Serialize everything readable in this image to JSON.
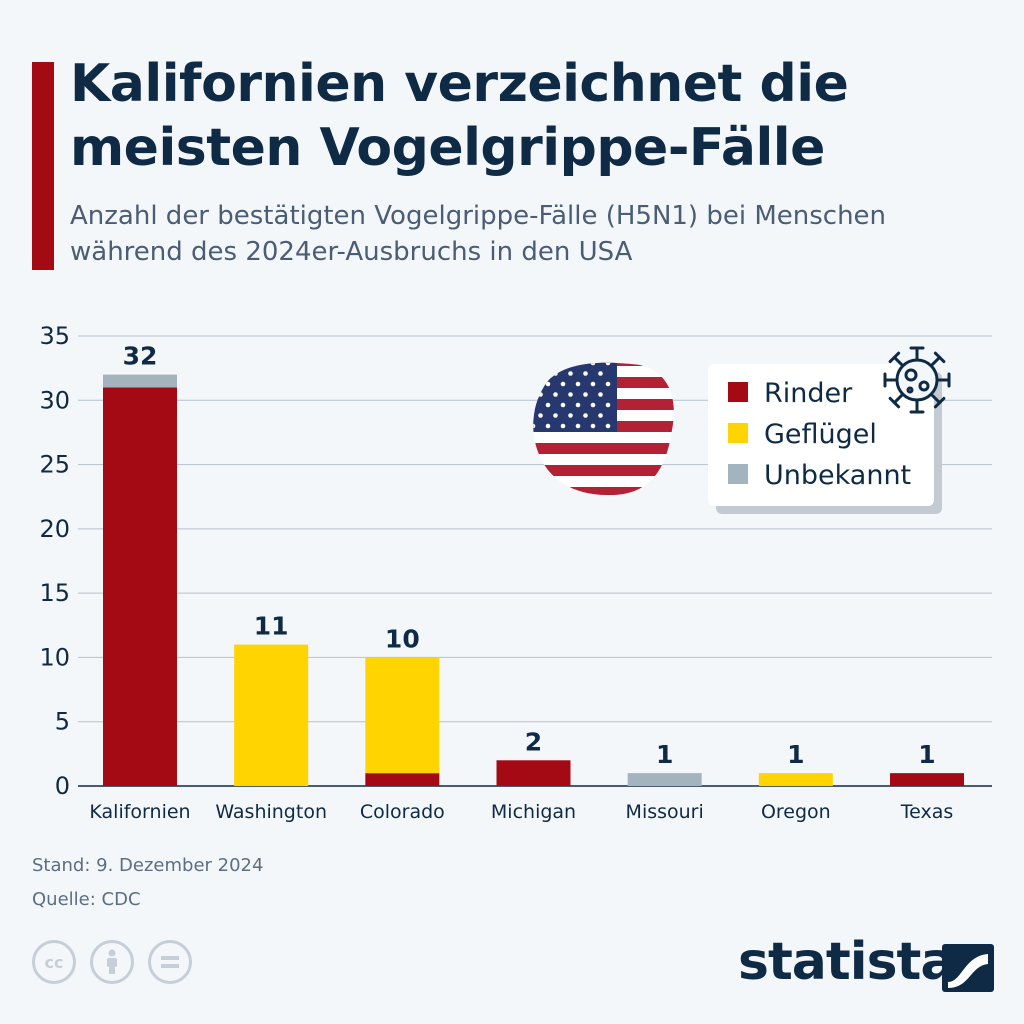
{
  "header": {
    "title": "Kalifornien verzeichnet die meisten Vogelgrippe-Fälle",
    "subtitle": "Anzahl der bestätigten Vogelgrippe-Fälle (H5N1) bei Menschen während des 2024er-Ausbruchs in den USA"
  },
  "chart_data": {
    "type": "bar",
    "stacked": true,
    "categories": [
      "Kalifornien",
      "Washington",
      "Colorado",
      "Michigan",
      "Missouri",
      "Oregon",
      "Texas"
    ],
    "series": [
      {
        "name": "Rinder",
        "color": "#a30a14",
        "values": [
          31,
          0,
          1,
          2,
          0,
          0,
          1
        ]
      },
      {
        "name": "Geflügel",
        "color": "#ffd400",
        "values": [
          0,
          11,
          9,
          0,
          0,
          1,
          0
        ]
      },
      {
        "name": "Unbekannt",
        "color": "#a4b4be",
        "values": [
          1,
          0,
          0,
          0,
          1,
          0,
          0
        ]
      }
    ],
    "totals": [
      32,
      11,
      10,
      2,
      1,
      1,
      1
    ],
    "ylim": [
      0,
      35
    ],
    "yticks": [
      0,
      5,
      10,
      15,
      20,
      25,
      30,
      35
    ],
    "grid": true,
    "legend_position": "top-right"
  },
  "footer": {
    "date": "Stand: 9. Dezember 2024",
    "source": "Quelle: CDC",
    "brand": "statista"
  },
  "icons": {
    "flag": "us-flag-icon",
    "virus": "virus-icon",
    "license": [
      "cc-icon",
      "attribution-icon",
      "no-derivatives-icon"
    ]
  }
}
